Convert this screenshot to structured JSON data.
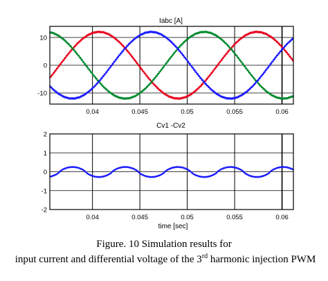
{
  "chart_data": [
    {
      "type": "line",
      "title": "Iabc [A]",
      "xlabel": "",
      "ylabel": "",
      "xlim": [
        0.0355,
        0.0612
      ],
      "ylim": [
        -14,
        14
      ],
      "xticks": [
        0.04,
        0.045,
        0.05,
        0.055,
        0.06
      ],
      "xtick_labels": [
        "0.04",
        "0.045",
        "0.05",
        "0.055",
        "0.06"
      ],
      "yticks": [
        10,
        0,
        -10
      ],
      "ytick_labels": [
        "10",
        "0",
        "-10"
      ],
      "grid": false,
      "vlines": [
        0.04,
        0.045,
        0.05,
        0.055,
        0.06
      ],
      "hlines": [
        10,
        0,
        -10
      ],
      "series": [
        {
          "color": "#e8001c",
          "amplitude": 12,
          "frequency_hz": 60,
          "peak_at": 0.0407,
          "x": [
            0.0355,
            0.0407,
            0.049,
            0.0574,
            0.0612
          ],
          "values": [
            -4,
            12,
            -12,
            12,
            5
          ]
        },
        {
          "color": "#008a2e",
          "amplitude": 12,
          "frequency_hz": 60,
          "peak_at": 0.0518,
          "x": [
            0.0355,
            0.0435,
            0.0518,
            0.0601
          ],
          "values": [
            11.5,
            -12,
            12,
            -12
          ]
        },
        {
          "color": "#1a1aff",
          "amplitude": 12,
          "frequency_hz": 60,
          "peak_at": 0.0462,
          "x": [
            0.0355,
            0.0379,
            0.0462,
            0.0546,
            0.0612
          ],
          "values": [
            -8,
            -12,
            12,
            -12,
            10.5
          ]
        }
      ]
    },
    {
      "type": "line",
      "title": "Cv1 -Cv2",
      "xlabel": "time [sec]",
      "ylabel": "",
      "xlim": [
        0.0355,
        0.0612
      ],
      "ylim": [
        -2,
        2
      ],
      "xticks": [
        0.04,
        0.045,
        0.05,
        0.055,
        0.06
      ],
      "xtick_labels": [
        "0.04",
        "0.045",
        "0.05",
        "0.055",
        "0.06"
      ],
      "yticks": [
        2,
        1,
        0,
        -1,
        -2
      ],
      "ytick_labels": [
        "2",
        "1",
        "0",
        "-1",
        "-2"
      ],
      "grid": false,
      "vlines": [
        0.04,
        0.045,
        0.05,
        0.055,
        0.06
      ],
      "hlines": [
        1,
        0,
        -1
      ],
      "series": [
        {
          "color": "#1a1aff",
          "period": 0.005556,
          "peaks_at": [
            0.0379,
            0.0435,
            0.049,
            0.0546,
            0.0601
          ],
          "troughs_at": [
            0.0407,
            0.0462,
            0.0518,
            0.0574
          ],
          "x": [
            0.0379,
            0.0407,
            0.0435,
            0.0462,
            0.049,
            0.0518,
            0.0546,
            0.0574,
            0.0601
          ],
          "values": [
            0.25,
            -0.28,
            0.25,
            -0.28,
            0.25,
            -0.28,
            0.25,
            -0.28,
            0.25
          ]
        }
      ]
    }
  ],
  "caption": {
    "line1": "Figure. 10 Simulation results for",
    "line2_pre": "input current and differential voltage of the 3",
    "line2_sup": "rd",
    "line2_post": " harmonic injection PWM"
  }
}
